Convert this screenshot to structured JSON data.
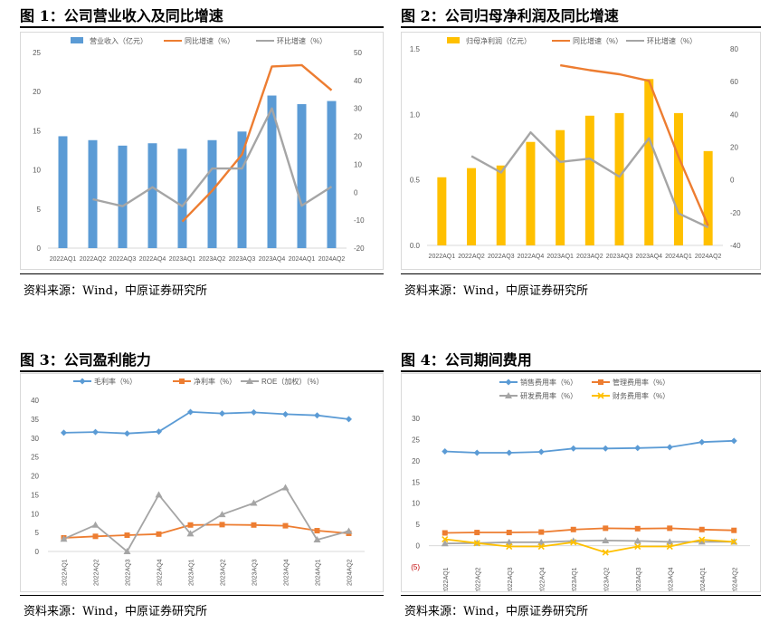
{
  "source_text": "资料来源：Wind，中原证券研究所",
  "chart_data": [
    {
      "id": "c1",
      "type": "bar",
      "title": "图 1：公司营业收入及同比增速",
      "categories": [
        "2022AQ1",
        "2022AQ2",
        "2022AQ3",
        "2022AQ4",
        "2023AQ1",
        "2023AQ2",
        "2023AQ3",
        "2023AQ4",
        "2024AQ1",
        "2024AQ2"
      ],
      "left_ticks": [
        "0",
        "5",
        "10",
        "15",
        "20",
        "25"
      ],
      "right_ticks": [
        "-20",
        "-10",
        "0",
        "10",
        "20",
        "30",
        "40",
        "50"
      ],
      "ylim": [
        0,
        25
      ],
      "y2lim": [
        -20,
        50
      ],
      "series": [
        {
          "name": "营业收入（亿元）",
          "kind": "bar",
          "axis": "left",
          "color": "#5b9bd5",
          "values": [
            14.3,
            13.8,
            13.1,
            13.4,
            12.7,
            13.8,
            14.9,
            19.5,
            18.4,
            18.8
          ]
        },
        {
          "name": "同比增速（%）",
          "kind": "line",
          "axis": "right",
          "color": "#ed7d31",
          "values": [
            null,
            null,
            null,
            null,
            -10.5,
            0.5,
            13.5,
            45,
            45.5,
            36.5
          ]
        },
        {
          "name": "环比增速（%）",
          "kind": "line",
          "axis": "right",
          "color": "#a5a5a5",
          "values": [
            null,
            -2.5,
            -5,
            1.8,
            -5,
            8.5,
            8.5,
            30,
            -4.8,
            2
          ]
        }
      ]
    },
    {
      "id": "c2",
      "type": "bar",
      "title": "图 2：公司归母净利润及同比增速",
      "categories": [
        "2022AQ1",
        "2022AQ2",
        "2022AQ3",
        "2022AQ4",
        "2023AQ1",
        "2023AQ2",
        "2023AQ3",
        "2023AQ4",
        "2024AQ1",
        "2024AQ2"
      ],
      "left_ticks": [
        "0.0",
        "0.5",
        "1.0",
        "1.5"
      ],
      "right_ticks": [
        "-40",
        "-20",
        "0",
        "20",
        "40",
        "60",
        "80"
      ],
      "ylim": [
        0,
        1.5
      ],
      "y2lim": [
        -40,
        80
      ],
      "series": [
        {
          "name": "归母净利润（亿元）",
          "kind": "bar",
          "axis": "left",
          "color": "#ffc000",
          "values": [
            0.52,
            0.59,
            0.61,
            0.79,
            0.88,
            0.99,
            1.01,
            1.27,
            1.01,
            0.72
          ]
        },
        {
          "name": "同比增速（%）",
          "kind": "line",
          "axis": "right",
          "color": "#ed7d31",
          "values": [
            null,
            null,
            null,
            null,
            70,
            67,
            64.5,
            60.5,
            14,
            -28
          ]
        },
        {
          "name": "环比增速（%）",
          "kind": "line",
          "axis": "right",
          "color": "#a5a5a5",
          "values": [
            null,
            14.5,
            4.5,
            29,
            11,
            13,
            2,
            25.5,
            -20.5,
            -29
          ]
        }
      ]
    },
    {
      "id": "c3",
      "type": "line",
      "title": "图 3：公司盈利能力",
      "categories": [
        "2022AQ1",
        "2022AQ2",
        "2022AQ3",
        "2022AQ4",
        "2023AQ1",
        "2023AQ2",
        "2023AQ3",
        "2023AQ4",
        "2024AQ1",
        "2024AQ2"
      ],
      "left_ticks": [
        "0",
        "5",
        "10",
        "15",
        "20",
        "25",
        "30",
        "35",
        "40"
      ],
      "ylim": [
        0,
        40
      ],
      "series": [
        {
          "name": "毛利率（%）",
          "marker": "diamond",
          "color": "#5b9bd5",
          "values": [
            31.4,
            31.6,
            31.2,
            31.7,
            36.9,
            36.5,
            36.8,
            36.3,
            36,
            35
          ]
        },
        {
          "name": "净利率（%）",
          "marker": "square",
          "color": "#ed7d31",
          "values": [
            3.6,
            4,
            4.3,
            4.6,
            7,
            7.1,
            7,
            6.8,
            5.5,
            4.8
          ]
        },
        {
          "name": "ROE（加权）（%）",
          "marker": "triangle",
          "color": "#a5a5a5",
          "values": [
            3.3,
            7,
            0,
            15,
            4.7,
            9.8,
            12.8,
            16.9,
            3.1,
            5.4
          ]
        }
      ]
    },
    {
      "id": "c4",
      "type": "line",
      "title": "图 4：公司期间费用",
      "categories": [
        "2022AQ1",
        "2022AQ2",
        "2022AQ3",
        "2022AQ4",
        "2023AQ1",
        "2023AQ2",
        "2023AQ3",
        "2023AQ4",
        "2024AQ1",
        "2024AQ2"
      ],
      "left_ticks": [
        "(5)",
        "0",
        "5",
        "10",
        "15",
        "20",
        "25",
        "30"
      ],
      "ylim": [
        -5,
        30
      ],
      "series": [
        {
          "name": "销售费用率（%）",
          "marker": "diamond",
          "color": "#5b9bd5",
          "values": [
            22.2,
            21.9,
            21.9,
            22.1,
            22.9,
            22.9,
            23,
            23.2,
            24.4,
            24.7
          ]
        },
        {
          "name": "管理费用率（%）",
          "marker": "square",
          "color": "#ed7d31",
          "values": [
            3,
            3.1,
            3.1,
            3.2,
            3.8,
            4.1,
            4,
            4.1,
            3.8,
            3.6
          ]
        },
        {
          "name": "研发费用率（%）",
          "marker": "triangle",
          "color": "#a5a5a5",
          "values": [
            0.5,
            0.6,
            0.8,
            0.8,
            1.1,
            1.2,
            1.1,
            0.9,
            0.9,
            0.9
          ]
        },
        {
          "name": "财务费用率（%）",
          "marker": "x",
          "color": "#ffc000",
          "values": [
            1.5,
            0.6,
            -0.2,
            -0.2,
            0.8,
            -1.6,
            -0.2,
            -0.2,
            1.4,
            0.9
          ]
        }
      ]
    }
  ]
}
